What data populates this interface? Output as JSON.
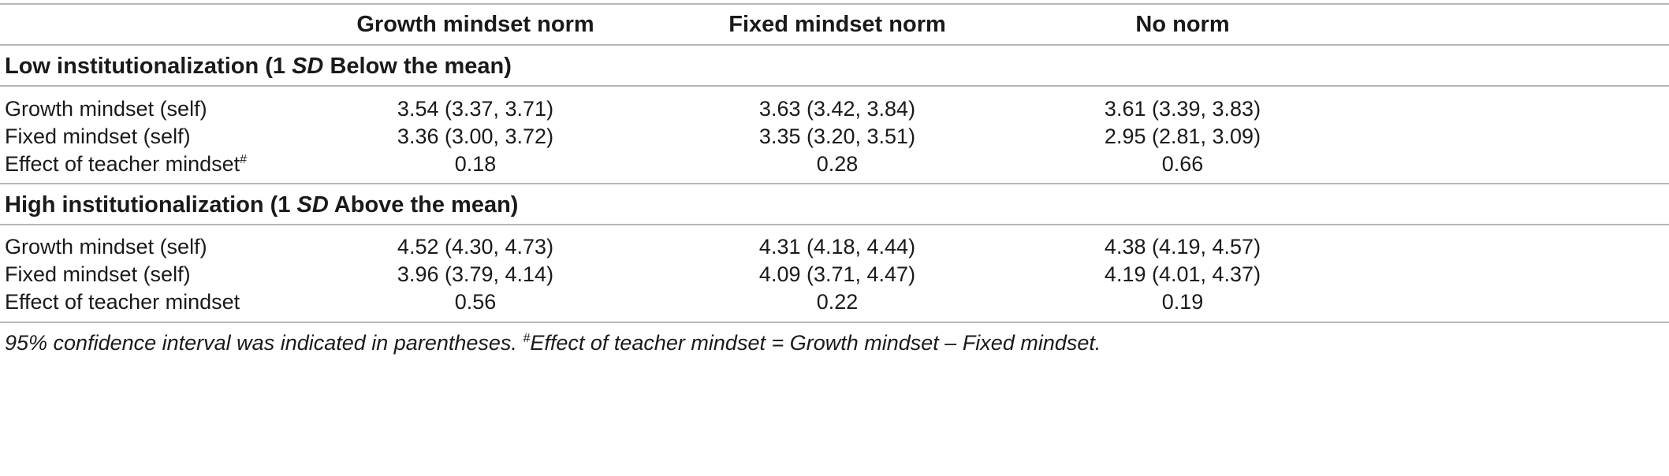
{
  "table": {
    "columns": [
      "",
      "Growth mindset norm",
      "Fixed mindset norm",
      "No norm"
    ],
    "sections": [
      {
        "title_pre": "Low institutionalization (1 ",
        "title_em": "SD",
        "title_post": " Below the mean)",
        "rows": [
          {
            "label": "Growth mindset (self)",
            "label_sup": "",
            "cells": [
              "3.54 (3.37, 3.71)",
              "3.63 (3.42, 3.84)",
              "3.61 (3.39, 3.83)"
            ]
          },
          {
            "label": "Fixed mindset (self)",
            "label_sup": "",
            "cells": [
              "3.36 (3.00, 3.72)",
              "3.35 (3.20, 3.51)",
              "2.95 (2.81, 3.09)"
            ]
          },
          {
            "label": "Effect of teacher mindset",
            "label_sup": "#",
            "cells": [
              "0.18",
              "0.28",
              "0.66"
            ]
          }
        ]
      },
      {
        "title_pre": "High institutionalization (1 ",
        "title_em": "SD",
        "title_post": " Above the mean)",
        "rows": [
          {
            "label": "Growth mindset (self)",
            "label_sup": "",
            "cells": [
              "4.52 (4.30, 4.73)",
              "4.31 (4.18, 4.44)",
              "4.38 (4.19, 4.57)"
            ]
          },
          {
            "label": "Fixed mindset (self)",
            "label_sup": "",
            "cells": [
              "3.96 (3.79, 4.14)",
              "4.09 (3.71, 4.47)",
              "4.19 (4.01, 4.37)"
            ]
          },
          {
            "label": "Effect of teacher mindset",
            "label_sup": "",
            "cells": [
              "0.56",
              "0.22",
              "0.19"
            ]
          }
        ]
      }
    ]
  },
  "footnote": {
    "part1": "95% confidence interval was indicated in parentheses. ",
    "sup": "#",
    "part2": "Effect of teacher mindset = Growth mindset – Fixed mindset."
  }
}
